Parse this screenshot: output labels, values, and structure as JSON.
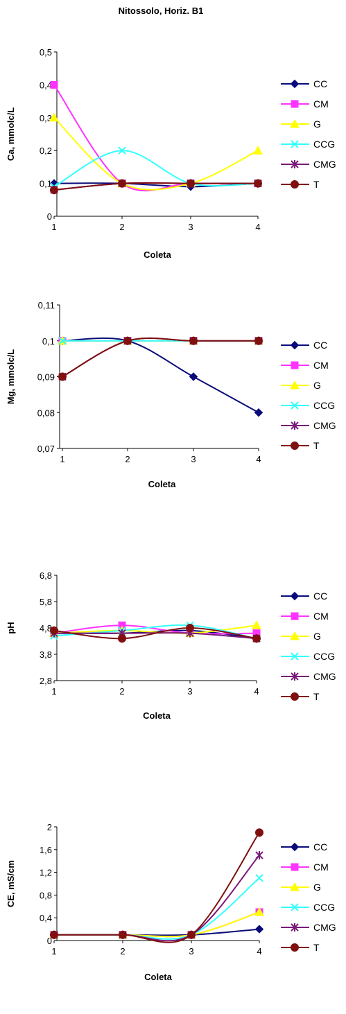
{
  "title": "Nitossolo, Horiz. B1",
  "series_colors": {
    "CC": "#0a0a7a",
    "CM": "#ff33ff",
    "G": "#ffff00",
    "CCG": "#33ffff",
    "CMG": "#7a1a7a",
    "T": "#801010"
  },
  "series_markers": {
    "CC": "diamond",
    "CM": "square",
    "G": "triangle",
    "CCG": "x",
    "CMG": "star",
    "T": "circle"
  },
  "chart_data": [
    {
      "type": "line",
      "xlabel": "Coleta",
      "ylabel": "Ca, mmolc/L",
      "categories": [
        "1",
        "2",
        "3",
        "4"
      ],
      "yticks": [
        "0",
        "0,1",
        "0,2",
        "0,3",
        "0,4",
        "0,5"
      ],
      "ylim": [
        0,
        0.5
      ],
      "legend_position": "right",
      "series": [
        {
          "name": "CC",
          "values": [
            0.1,
            0.1,
            0.09,
            0.1
          ]
        },
        {
          "name": "CM",
          "values": [
            0.4,
            0.1,
            0.1,
            0.1
          ]
        },
        {
          "name": "G",
          "values": [
            0.3,
            0.1,
            0.1,
            0.2
          ]
        },
        {
          "name": "CCG",
          "values": [
            0.09,
            0.2,
            0.1,
            0.1
          ]
        },
        {
          "name": "CMG",
          "values": [
            0.08,
            0.1,
            0.1,
            0.1
          ]
        },
        {
          "name": "T",
          "values": [
            0.08,
            0.1,
            0.1,
            0.1
          ]
        }
      ]
    },
    {
      "type": "line",
      "xlabel": "Coleta",
      "ylabel": "Mg, mmolc/L",
      "categories": [
        "1",
        "2",
        "3",
        "4"
      ],
      "yticks": [
        "0,07",
        "0,08",
        "0,09",
        "0,1",
        "0,11"
      ],
      "ylim": [
        0.07,
        0.11
      ],
      "legend_position": "right",
      "series": [
        {
          "name": "CC",
          "values": [
            0.1,
            0.1,
            0.09,
            0.08
          ]
        },
        {
          "name": "CM",
          "values": [
            0.1,
            0.1,
            0.1,
            0.1
          ]
        },
        {
          "name": "G",
          "values": [
            0.1,
            0.1,
            0.1,
            0.1
          ]
        },
        {
          "name": "CCG",
          "values": [
            0.1,
            0.1,
            0.1,
            0.1
          ]
        },
        {
          "name": "CMG",
          "values": [
            0.09,
            0.1,
            0.1,
            0.1
          ]
        },
        {
          "name": "T",
          "values": [
            0.09,
            0.1,
            0.1,
            0.1
          ]
        }
      ]
    },
    {
      "type": "line",
      "xlabel": "Coleta",
      "ylabel": "pH",
      "categories": [
        "1",
        "2",
        "3",
        "4"
      ],
      "yticks": [
        "2,8",
        "3,8",
        "4,8",
        "5,8",
        "6,8"
      ],
      "ylim": [
        2.8,
        6.8
      ],
      "legend_position": "right",
      "series": [
        {
          "name": "CC",
          "values": [
            4.6,
            4.6,
            4.7,
            4.4
          ]
        },
        {
          "name": "CM",
          "values": [
            4.6,
            4.9,
            4.6,
            4.6
          ]
        },
        {
          "name": "G",
          "values": [
            4.6,
            4.7,
            4.6,
            4.9
          ]
        },
        {
          "name": "CCG",
          "values": [
            4.5,
            4.7,
            4.9,
            4.4
          ]
        },
        {
          "name": "CMG",
          "values": [
            4.6,
            4.6,
            4.6,
            4.4
          ]
        },
        {
          "name": "T",
          "values": [
            4.7,
            4.4,
            4.8,
            4.4
          ]
        }
      ]
    },
    {
      "type": "line",
      "xlabel": "Coleta",
      "ylabel": "CE, mS/cm",
      "categories": [
        "1",
        "2",
        "3",
        "4"
      ],
      "yticks": [
        "0",
        "0,4",
        "0,8",
        "1,2",
        "1,6",
        "2"
      ],
      "ylim": [
        0,
        2
      ],
      "legend_position": "right",
      "series": [
        {
          "name": "CC",
          "values": [
            0.1,
            0.1,
            0.1,
            0.2
          ]
        },
        {
          "name": "CM",
          "values": [
            0.1,
            0.1,
            0.1,
            0.5
          ]
        },
        {
          "name": "G",
          "values": [
            0.1,
            0.1,
            0.1,
            0.5
          ]
        },
        {
          "name": "CCG",
          "values": [
            0.1,
            0.1,
            0.1,
            1.1
          ]
        },
        {
          "name": "CMG",
          "values": [
            0.1,
            0.1,
            0.1,
            1.5
          ]
        },
        {
          "name": "T",
          "values": [
            0.1,
            0.1,
            0.1,
            1.9
          ]
        }
      ]
    }
  ]
}
